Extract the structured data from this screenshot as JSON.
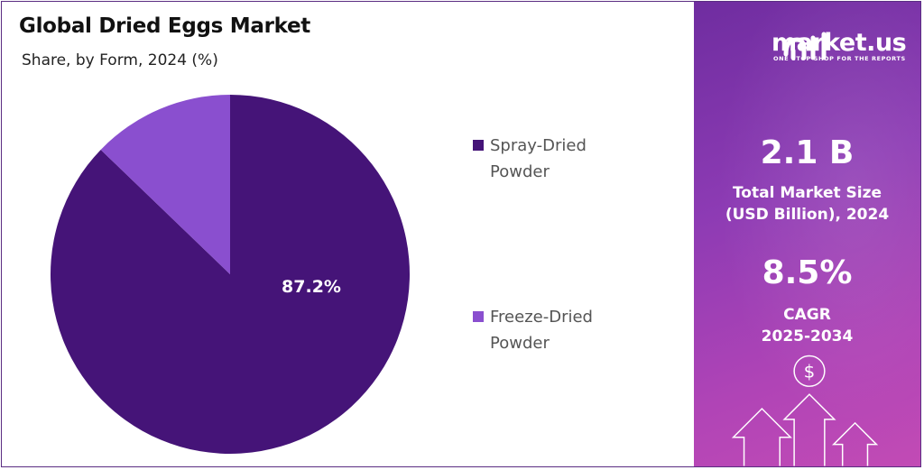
{
  "title": "Global Dried Eggs Market",
  "subtitle": "Share, by Form, 2024 (%)",
  "chart_data": {
    "type": "pie",
    "title": "Global Dried Eggs Market",
    "subtitle": "Share, by Form, 2024 (%)",
    "slices": [
      {
        "label": "Spray-Dried Powder",
        "value": 87.2,
        "color": "#451478",
        "data_label": "87.2%"
      },
      {
        "label": "Freeze-Dried Powder",
        "value": 12.8,
        "color": "#8a4fcf",
        "data_label": ""
      }
    ],
    "legend_position": "right"
  },
  "legend": [
    {
      "line1": "Spray-Dried",
      "line2": "Powder",
      "color": "#451478"
    },
    {
      "line1": "Freeze-Dried",
      "line2": "Powder",
      "color": "#8a4fcf"
    }
  ],
  "brand": {
    "name": "market.us",
    "tagline": "ONE STOP SHOP FOR THE REPORTS"
  },
  "stats": {
    "market_size_value": "2.1 B",
    "market_size_label_1": "Total Market Size",
    "market_size_label_2": "(USD Billion), 2024",
    "cagr_value": "8.5%",
    "cagr_label_1": "CAGR",
    "cagr_label_2": "2025-2034"
  },
  "colors": {
    "panel_start": "#6f2da0",
    "panel_end": "#c24bb5",
    "border": "#5a2d82"
  },
  "icons": [
    "market-us-logo-icon",
    "dollar-icon",
    "growth-arrows-icon"
  ]
}
